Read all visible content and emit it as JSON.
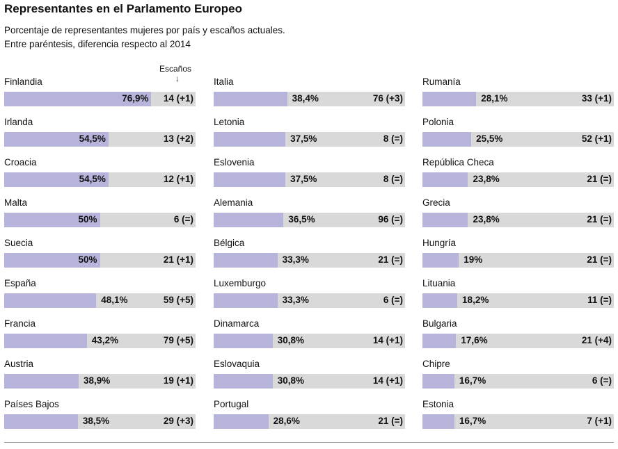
{
  "chart_data": {
    "type": "bar",
    "title": "Representantes en el Parlamento Europeo",
    "subtitle": [
      "Porcentaje de representantes mujeres por país y escaños actuales.",
      "Entre paréntesis, diferencia respecto al 2014"
    ],
    "seats_label": "Escaños",
    "xlim": [
      0,
      100
    ],
    "colors": {
      "fill": "#b7b4db",
      "track": "#d9d9d9"
    },
    "columns": [
      [
        {
          "name": "Finlandia",
          "pct": 76.9,
          "label": "76,9%",
          "seats": "14 (+1)"
        },
        {
          "name": "Irlanda",
          "pct": 54.5,
          "label": "54,5%",
          "seats": "13 (+2)"
        },
        {
          "name": "Croacia",
          "pct": 54.5,
          "label": "54,5%",
          "seats": "12 (+1)"
        },
        {
          "name": "Malta",
          "pct": 50,
          "label": "50%",
          "seats": "6 (=)"
        },
        {
          "name": "Suecia",
          "pct": 50,
          "label": "50%",
          "seats": "21 (+1)"
        },
        {
          "name": "España",
          "pct": 48.1,
          "label": "48,1%",
          "seats": "59 (+5)"
        },
        {
          "name": "Francia",
          "pct": 43.2,
          "label": "43,2%",
          "seats": "79 (+5)"
        },
        {
          "name": "Austria",
          "pct": 38.9,
          "label": "38,9%",
          "seats": "19 (+1)"
        },
        {
          "name": "Países Bajos",
          "pct": 38.5,
          "label": "38,5%",
          "seats": "29 (+3)"
        }
      ],
      [
        {
          "name": "Italia",
          "pct": 38.4,
          "label": "38,4%",
          "seats": "76 (+3)"
        },
        {
          "name": "Letonia",
          "pct": 37.5,
          "label": "37,5%",
          "seats": "8 (=)"
        },
        {
          "name": "Eslovenia",
          "pct": 37.5,
          "label": "37,5%",
          "seats": "8 (=)"
        },
        {
          "name": "Alemania",
          "pct": 36.5,
          "label": "36,5%",
          "seats": "96 (=)"
        },
        {
          "name": "Bélgica",
          "pct": 33.3,
          "label": "33,3%",
          "seats": "21 (=)"
        },
        {
          "name": "Luxemburgo",
          "pct": 33.3,
          "label": "33,3%",
          "seats": "6 (=)"
        },
        {
          "name": "Dinamarca",
          "pct": 30.8,
          "label": "30,8%",
          "seats": "14 (+1)"
        },
        {
          "name": "Eslovaquia",
          "pct": 30.8,
          "label": "30,8%",
          "seats": "14 (+1)"
        },
        {
          "name": "Portugal",
          "pct": 28.6,
          "label": "28,6%",
          "seats": "21 (=)"
        }
      ],
      [
        {
          "name": "Rumanía",
          "pct": 28.1,
          "label": "28,1%",
          "seats": "33 (+1)"
        },
        {
          "name": "Polonia",
          "pct": 25.5,
          "label": "25,5%",
          "seats": "52 (+1)"
        },
        {
          "name": "República Checa",
          "pct": 23.8,
          "label": "23,8%",
          "seats": "21 (=)"
        },
        {
          "name": "Grecia",
          "pct": 23.8,
          "label": "23,8%",
          "seats": "21 (=)"
        },
        {
          "name": "Hungría",
          "pct": 19,
          "label": "19%",
          "seats": "21 (=)"
        },
        {
          "name": "Lituania",
          "pct": 18.2,
          "label": "18,2%",
          "seats": "11 (=)"
        },
        {
          "name": "Bulgaria",
          "pct": 17.6,
          "label": "17,6%",
          "seats": "21 (+4)"
        },
        {
          "name": "Chipre",
          "pct": 16.7,
          "label": "16,7%",
          "seats": "6 (=)"
        },
        {
          "name": "Estonia",
          "pct": 16.7,
          "label": "16,7%",
          "seats": "7 (+1)"
        }
      ]
    ]
  }
}
